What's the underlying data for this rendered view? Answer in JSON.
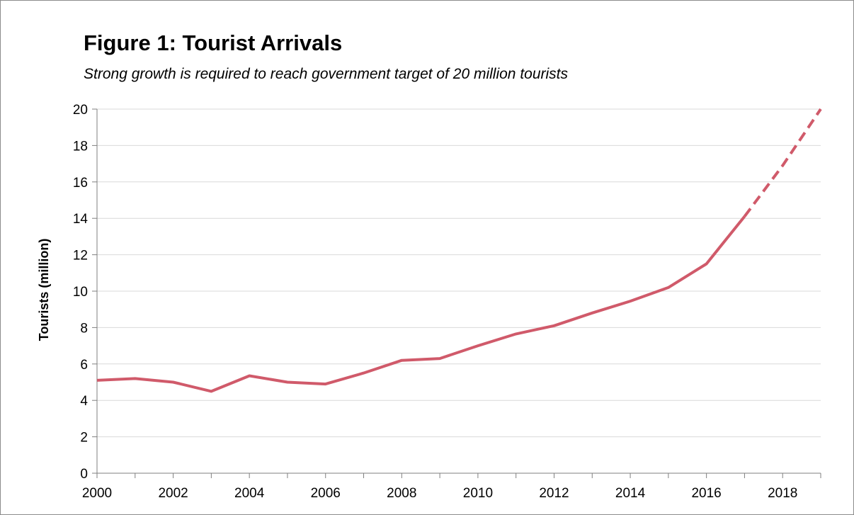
{
  "chart_data": {
    "type": "line",
    "title": "Figure 1: Tourist Arrivals",
    "subtitle": "Strong growth is required to reach government target of 20 million tourists",
    "xlabel": "",
    "ylabel": "Tourists (million)",
    "xlim": [
      2000,
      2019
    ],
    "ylim": [
      0,
      20
    ],
    "x_ticks": [
      2000,
      2002,
      2004,
      2006,
      2008,
      2010,
      2012,
      2014,
      2016,
      2018
    ],
    "y_ticks": [
      0,
      2,
      4,
      6,
      8,
      10,
      12,
      14,
      16,
      18,
      20
    ],
    "grid": "horizontal",
    "line_color": "#d05a6a",
    "series": [
      {
        "style": "solid",
        "x": [
          2000,
          2001,
          2002,
          2003,
          2004,
          2005,
          2006,
          2007,
          2008,
          2009,
          2010,
          2011,
          2012,
          2013,
          2014,
          2015,
          2016,
          2017
        ],
        "values": [
          5.1,
          5.2,
          5.0,
          4.5,
          5.35,
          5.0,
          4.9,
          5.5,
          6.2,
          6.3,
          7.0,
          7.65,
          8.1,
          8.8,
          9.45,
          10.2,
          11.5,
          14.1
        ]
      },
      {
        "style": "dashed",
        "x": [
          2017,
          2018,
          2019
        ],
        "values": [
          14.1,
          16.9,
          20.0
        ]
      }
    ]
  }
}
